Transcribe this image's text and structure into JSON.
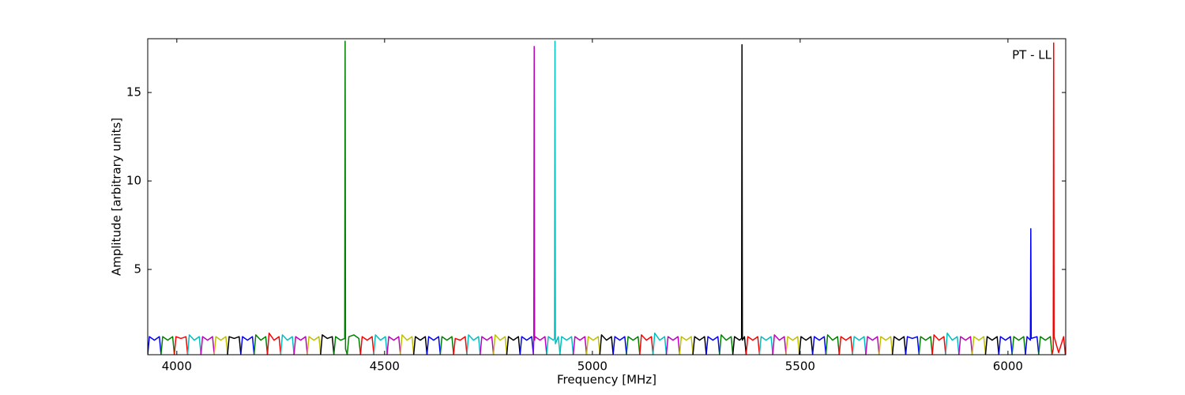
{
  "chart_data": {
    "type": "line",
    "xlabel": "Frequency [MHz]",
    "ylabel": "Amplitude [arbitrary units]",
    "annotation": "PT - LL",
    "xlim": [
      3930,
      6139
    ],
    "ylim": [
      0.18,
      18.04
    ],
    "xticks": [
      4000,
      4500,
      5000,
      5500,
      6000
    ],
    "yticks": [
      5,
      10,
      15
    ],
    "series": [
      {
        "color": "#0000ff",
        "x": [
          3930,
          3934,
          3946,
          3958,
          3962
        ],
        "values": [
          0.2,
          1.2,
          1.0,
          1.2,
          0.2
        ]
      },
      {
        "color": "#008000",
        "x": [
          3962,
          3966,
          3978,
          3990,
          3994
        ],
        "values": [
          0.2,
          1.2,
          1.0,
          1.2,
          0.2
        ]
      },
      {
        "color": "#ff0000",
        "x": [
          3994,
          3998,
          4010,
          4022,
          4026
        ],
        "values": [
          0.2,
          1.2,
          1.1,
          1.2,
          0.2
        ]
      },
      {
        "color": "#00bfbf",
        "x": [
          4026,
          4030,
          4042,
          4054,
          4058
        ],
        "values": [
          0.2,
          1.3,
          1.0,
          1.2,
          0.2
        ]
      },
      {
        "color": "#bf00bf",
        "x": [
          4058,
          4062,
          4074,
          4086,
          4090
        ],
        "values": [
          0.2,
          1.2,
          1.0,
          1.2,
          0.2
        ]
      },
      {
        "color": "#bfbf00",
        "x": [
          4090,
          4094,
          4106,
          4118,
          4122
        ],
        "values": [
          0.2,
          1.2,
          1.0,
          1.2,
          0.2
        ]
      },
      {
        "color": "#000000",
        "x": [
          4122,
          4126,
          4138,
          4150,
          4154
        ],
        "values": [
          0.2,
          1.2,
          1.1,
          1.2,
          0.2
        ]
      },
      {
        "color": "#0000ff",
        "x": [
          4154,
          4158,
          4170,
          4182,
          4186
        ],
        "values": [
          0.2,
          1.2,
          1.0,
          1.2,
          0.2
        ]
      },
      {
        "color": "#008000",
        "x": [
          4186,
          4190,
          4202,
          4214,
          4218
        ],
        "values": [
          0.2,
          1.3,
          1.0,
          1.2,
          0.2
        ]
      },
      {
        "color": "#ff0000",
        "x": [
          4218,
          4222,
          4234,
          4246,
          4250
        ],
        "values": [
          0.2,
          1.4,
          1.0,
          1.2,
          0.2
        ]
      },
      {
        "color": "#00bfbf",
        "x": [
          4250,
          4254,
          4266,
          4278,
          4282
        ],
        "values": [
          0.2,
          1.3,
          1.0,
          1.2,
          0.2
        ]
      },
      {
        "color": "#bf00bf",
        "x": [
          4282,
          4286,
          4298,
          4310,
          4314
        ],
        "values": [
          0.2,
          1.2,
          1.0,
          1.2,
          0.2
        ]
      },
      {
        "color": "#bfbf00",
        "x": [
          4314,
          4318,
          4330,
          4342,
          4346
        ],
        "values": [
          0.2,
          1.2,
          1.0,
          1.2,
          0.2
        ]
      },
      {
        "color": "#000000",
        "x": [
          4346,
          4350,
          4362,
          4374,
          4378
        ],
        "values": [
          0.2,
          1.3,
          1.1,
          1.2,
          0.2
        ]
      },
      {
        "color": "#008000",
        "x": [
          4378,
          4382,
          4394,
          4404,
          4405,
          4406,
          4410
        ],
        "values": [
          0.2,
          1.2,
          1.0,
          1.1,
          17.9,
          0.5,
          0.2
        ]
      },
      {
        "color": "#008000",
        "x": [
          4410,
          4414,
          4426,
          4438,
          4442
        ],
        "values": [
          0.2,
          1.2,
          1.3,
          1.1,
          0.2
        ]
      },
      {
        "color": "#ff0000",
        "x": [
          4442,
          4446,
          4458,
          4470,
          4474
        ],
        "values": [
          0.2,
          1.2,
          1.0,
          1.2,
          0.2
        ]
      },
      {
        "color": "#00bfbf",
        "x": [
          4474,
          4478,
          4490,
          4502,
          4506
        ],
        "values": [
          0.2,
          1.3,
          1.0,
          1.2,
          0.2
        ]
      },
      {
        "color": "#bf00bf",
        "x": [
          4506,
          4510,
          4522,
          4534,
          4538
        ],
        "values": [
          0.2,
          1.2,
          1.0,
          1.2,
          0.2
        ]
      },
      {
        "color": "#bfbf00",
        "x": [
          4538,
          4542,
          4554,
          4566,
          4570
        ],
        "values": [
          0.2,
          1.3,
          1.0,
          1.2,
          0.2
        ]
      },
      {
        "color": "#000000",
        "x": [
          4570,
          4574,
          4586,
          4598,
          4602
        ],
        "values": [
          0.2,
          1.2,
          1.0,
          1.2,
          0.2
        ]
      },
      {
        "color": "#0000ff",
        "x": [
          4602,
          4606,
          4618,
          4630,
          4634
        ],
        "values": [
          0.2,
          1.2,
          1.0,
          1.2,
          0.2
        ]
      },
      {
        "color": "#008000",
        "x": [
          4634,
          4638,
          4650,
          4662,
          4666
        ],
        "values": [
          0.2,
          1.2,
          1.0,
          1.2,
          0.2
        ]
      },
      {
        "color": "#ff0000",
        "x": [
          4666,
          4670,
          4682,
          4694,
          4698
        ],
        "values": [
          0.2,
          1.1,
          1.0,
          1.2,
          0.2
        ]
      },
      {
        "color": "#00bfbf",
        "x": [
          4698,
          4702,
          4714,
          4726,
          4730
        ],
        "values": [
          0.2,
          1.3,
          1.0,
          1.2,
          0.2
        ]
      },
      {
        "color": "#bf00bf",
        "x": [
          4730,
          4734,
          4746,
          4758,
          4762
        ],
        "values": [
          0.2,
          1.2,
          1.0,
          1.2,
          0.2
        ]
      },
      {
        "color": "#bfbf00",
        "x": [
          4762,
          4766,
          4778,
          4790,
          4794
        ],
        "values": [
          0.2,
          1.3,
          1.0,
          1.2,
          0.2
        ]
      },
      {
        "color": "#000000",
        "x": [
          4794,
          4798,
          4810,
          4822,
          4826
        ],
        "values": [
          0.2,
          1.2,
          1.0,
          1.2,
          0.2
        ]
      },
      {
        "color": "#0000ff",
        "x": [
          4826,
          4830,
          4842,
          4854,
          4858
        ],
        "values": [
          0.2,
          1.2,
          1.0,
          1.2,
          0.2
        ]
      },
      {
        "color": "#bf00bf",
        "x": [
          4858,
          4859,
          4860,
          4861,
          4862,
          4874,
          4886,
          4890
        ],
        "values": [
          0.2,
          1.0,
          17.6,
          1.0,
          1.2,
          1.0,
          1.2,
          0.2
        ]
      },
      {
        "color": "#00bfbf",
        "x": [
          4890,
          4894,
          4906,
          4909,
          4910,
          4911,
          4918,
          4922
        ],
        "values": [
          0.2,
          1.2,
          1.0,
          1.1,
          17.9,
          0.8,
          1.2,
          0.2
        ]
      },
      {
        "color": "#00bfbf",
        "x": [
          4922,
          4926,
          4938,
          4950,
          4954
        ],
        "values": [
          0.2,
          1.2,
          1.0,
          1.2,
          0.2
        ]
      },
      {
        "color": "#bf00bf",
        "x": [
          4954,
          4958,
          4970,
          4982,
          4986
        ],
        "values": [
          0.2,
          1.2,
          1.0,
          1.2,
          0.2
        ]
      },
      {
        "color": "#bfbf00",
        "x": [
          4986,
          4990,
          5002,
          5014,
          5018
        ],
        "values": [
          0.2,
          1.2,
          1.0,
          1.2,
          0.2
        ]
      },
      {
        "color": "#000000",
        "x": [
          5018,
          5022,
          5034,
          5046,
          5050
        ],
        "values": [
          0.2,
          1.3,
          1.0,
          1.2,
          0.2
        ]
      },
      {
        "color": "#0000ff",
        "x": [
          5050,
          5054,
          5066,
          5078,
          5082
        ],
        "values": [
          0.2,
          1.2,
          1.0,
          1.2,
          0.2
        ]
      },
      {
        "color": "#008000",
        "x": [
          5082,
          5086,
          5098,
          5110,
          5114
        ],
        "values": [
          0.2,
          1.2,
          1.0,
          1.2,
          0.2
        ]
      },
      {
        "color": "#ff0000",
        "x": [
          5114,
          5118,
          5130,
          5142,
          5146
        ],
        "values": [
          0.2,
          1.3,
          1.0,
          1.2,
          0.2
        ]
      },
      {
        "color": "#00bfbf",
        "x": [
          5146,
          5150,
          5162,
          5174,
          5178
        ],
        "values": [
          0.2,
          1.4,
          1.0,
          1.2,
          0.2
        ]
      },
      {
        "color": "#bf00bf",
        "x": [
          5178,
          5182,
          5194,
          5206,
          5210
        ],
        "values": [
          0.2,
          1.2,
          1.0,
          1.2,
          0.2
        ]
      },
      {
        "color": "#bfbf00",
        "x": [
          5210,
          5214,
          5226,
          5238,
          5242
        ],
        "values": [
          0.2,
          1.2,
          1.0,
          1.2,
          0.2
        ]
      },
      {
        "color": "#000000",
        "x": [
          5242,
          5246,
          5258,
          5270,
          5274
        ],
        "values": [
          0.2,
          1.2,
          1.0,
          1.2,
          0.2
        ]
      },
      {
        "color": "#0000ff",
        "x": [
          5274,
          5278,
          5290,
          5302,
          5306
        ],
        "values": [
          0.2,
          1.2,
          1.0,
          1.2,
          0.2
        ]
      },
      {
        "color": "#008000",
        "x": [
          5306,
          5310,
          5322,
          5334,
          5338
        ],
        "values": [
          0.2,
          1.3,
          1.0,
          1.2,
          0.2
        ]
      },
      {
        "color": "#000000",
        "x": [
          5338,
          5342,
          5354,
          5359,
          5360,
          5361,
          5366,
          5370
        ],
        "values": [
          0.2,
          1.2,
          1.0,
          1.1,
          17.7,
          1.0,
          1.2,
          0.2
        ]
      },
      {
        "color": "#ff0000",
        "x": [
          5370,
          5374,
          5386,
          5398,
          5402
        ],
        "values": [
          0.2,
          1.2,
          1.0,
          1.2,
          0.2
        ]
      },
      {
        "color": "#00bfbf",
        "x": [
          5402,
          5406,
          5418,
          5430,
          5434
        ],
        "values": [
          0.2,
          1.2,
          1.0,
          1.2,
          0.2
        ]
      },
      {
        "color": "#bf00bf",
        "x": [
          5434,
          5438,
          5450,
          5462,
          5466
        ],
        "values": [
          0.2,
          1.3,
          1.0,
          1.2,
          0.2
        ]
      },
      {
        "color": "#bfbf00",
        "x": [
          5466,
          5470,
          5482,
          5494,
          5498
        ],
        "values": [
          0.2,
          1.2,
          1.0,
          1.2,
          0.2
        ]
      },
      {
        "color": "#000000",
        "x": [
          5498,
          5502,
          5514,
          5526,
          5530
        ],
        "values": [
          0.2,
          1.2,
          1.0,
          1.2,
          0.2
        ]
      },
      {
        "color": "#0000ff",
        "x": [
          5530,
          5534,
          5546,
          5558,
          5562
        ],
        "values": [
          0.2,
          1.2,
          1.0,
          1.2,
          0.2
        ]
      },
      {
        "color": "#008000",
        "x": [
          5562,
          5566,
          5578,
          5590,
          5594
        ],
        "values": [
          0.2,
          1.3,
          1.0,
          1.2,
          0.2
        ]
      },
      {
        "color": "#ff0000",
        "x": [
          5594,
          5598,
          5610,
          5622,
          5626
        ],
        "values": [
          0.2,
          1.2,
          1.0,
          1.2,
          0.2
        ]
      },
      {
        "color": "#00bfbf",
        "x": [
          5626,
          5630,
          5642,
          5654,
          5658
        ],
        "values": [
          0.2,
          1.2,
          1.0,
          1.2,
          0.2
        ]
      },
      {
        "color": "#bf00bf",
        "x": [
          5658,
          5662,
          5674,
          5686,
          5690
        ],
        "values": [
          0.2,
          1.2,
          1.0,
          1.2,
          0.2
        ]
      },
      {
        "color": "#bfbf00",
        "x": [
          5690,
          5694,
          5706,
          5718,
          5722
        ],
        "values": [
          0.2,
          1.2,
          1.0,
          1.2,
          0.2
        ]
      },
      {
        "color": "#000000",
        "x": [
          5722,
          5726,
          5738,
          5750,
          5754
        ],
        "values": [
          0.2,
          1.2,
          1.0,
          1.2,
          0.2
        ]
      },
      {
        "color": "#0000ff",
        "x": [
          5754,
          5758,
          5770,
          5782,
          5786
        ],
        "values": [
          0.2,
          1.2,
          1.1,
          1.2,
          0.2
        ]
      },
      {
        "color": "#008000",
        "x": [
          5786,
          5790,
          5802,
          5814,
          5818
        ],
        "values": [
          0.2,
          1.2,
          1.0,
          1.2,
          0.2
        ]
      },
      {
        "color": "#ff0000",
        "x": [
          5818,
          5822,
          5834,
          5846,
          5850
        ],
        "values": [
          0.2,
          1.3,
          1.0,
          1.2,
          0.2
        ]
      },
      {
        "color": "#00bfbf",
        "x": [
          5850,
          5854,
          5866,
          5878,
          5882
        ],
        "values": [
          0.2,
          1.4,
          1.0,
          1.2,
          0.2
        ]
      },
      {
        "color": "#bf00bf",
        "x": [
          5882,
          5886,
          5898,
          5910,
          5914
        ],
        "values": [
          0.2,
          1.2,
          1.0,
          1.2,
          0.2
        ]
      },
      {
        "color": "#bfbf00",
        "x": [
          5914,
          5918,
          5930,
          5942,
          5946
        ],
        "values": [
          0.2,
          1.2,
          1.0,
          1.2,
          0.2
        ]
      },
      {
        "color": "#000000",
        "x": [
          5946,
          5950,
          5962,
          5974,
          5978
        ],
        "values": [
          0.2,
          1.2,
          1.0,
          1.2,
          0.2
        ]
      },
      {
        "color": "#0000ff",
        "x": [
          5978,
          5982,
          5994,
          6006,
          6010
        ],
        "values": [
          0.2,
          1.2,
          1.0,
          1.2,
          0.2
        ]
      },
      {
        "color": "#008000",
        "x": [
          6010,
          6014,
          6026,
          6038,
          6042
        ],
        "values": [
          0.2,
          1.2,
          1.0,
          1.2,
          0.2
        ]
      },
      {
        "color": "#0000ff",
        "x": [
          6042,
          6046,
          6054,
          6055,
          6056,
          6070,
          6074
        ],
        "values": [
          0.2,
          1.2,
          1.0,
          7.3,
          1.1,
          1.2,
          0.2
        ]
      },
      {
        "color": "#008000",
        "x": [
          6074,
          6078,
          6090,
          6102,
          6106
        ],
        "values": [
          0.2,
          1.2,
          1.0,
          1.2,
          0.2
        ]
      },
      {
        "color": "#ff0000",
        "x": [
          6106,
          6109,
          6110,
          6111,
          6122,
          6134,
          6138
        ],
        "values": [
          0.2,
          0.5,
          17.8,
          1.2,
          0.3,
          1.2,
          0.2
        ]
      }
    ]
  }
}
